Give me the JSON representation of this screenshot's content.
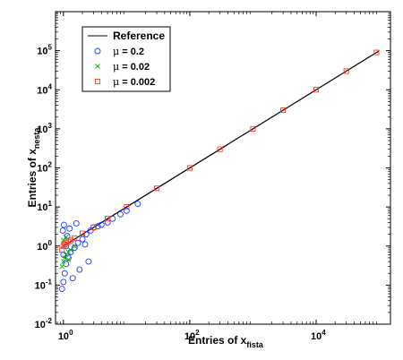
{
  "chart_data": {
    "type": "scatter",
    "xlabel": "Entries of x",
    "xlabel_sub": "fista",
    "ylabel": "Entries of x",
    "ylabel_sub": "nesta",
    "x_scale": "log",
    "y_scale": "log",
    "xlim": [
      0.75,
      150000
    ],
    "ylim": [
      0.01,
      1000000
    ],
    "x_ticks": [
      {
        "value": 1,
        "base": "10",
        "exp": "0"
      },
      {
        "value": 100,
        "base": "10",
        "exp": "2"
      },
      {
        "value": 10000,
        "base": "10",
        "exp": "4"
      }
    ],
    "y_ticks": [
      {
        "value": 0.01,
        "base": "10",
        "exp": "-2"
      },
      {
        "value": 0.1,
        "base": "10",
        "exp": "-1"
      },
      {
        "value": 1,
        "base": "10",
        "exp": "0"
      },
      {
        "value": 10,
        "base": "10",
        "exp": "1"
      },
      {
        "value": 100,
        "base": "10",
        "exp": "2"
      },
      {
        "value": 1000,
        "base": "10",
        "exp": "3"
      },
      {
        "value": 10000,
        "base": "10",
        "exp": "4"
      },
      {
        "value": 100000,
        "base": "10",
        "exp": "5"
      }
    ],
    "legend": {
      "placement": "top-left",
      "entries": [
        {
          "label": "Reference",
          "marker": "line",
          "color": "#000000"
        },
        {
          "label_prefix": "μ",
          "label": " = 0.2",
          "marker": "circle",
          "color": "#1f3cff"
        },
        {
          "label_prefix": "μ",
          "label": " = 0.02",
          "marker": "x",
          "color": "#00b000"
        },
        {
          "label_prefix": "μ",
          "label": " = 0.002",
          "marker": "square",
          "color": "#ff3a1a"
        }
      ]
    },
    "series": [
      {
        "name": "Reference",
        "style": "line",
        "color": "#000000",
        "x": [
          1,
          100000
        ],
        "y": [
          1,
          100000
        ]
      },
      {
        "name": "μ = 0.2",
        "style": "circle",
        "color": "#1f3cff",
        "x": [
          0.95,
          1.0,
          1.05,
          1.1,
          1.2,
          1.3,
          1.5,
          1.7,
          2.0,
          2.3,
          2.7,
          3.0,
          3.5,
          4.0,
          5.0,
          6.0,
          8.0,
          10.0,
          15.0,
          0.98,
          1.02,
          1.15,
          1.4,
          1.8,
          2.5,
          1.0,
          1.1,
          1.25,
          1.6,
          2.2
        ],
        "y": [
          0.08,
          0.12,
          0.2,
          0.35,
          0.5,
          0.7,
          0.9,
          1.2,
          1.5,
          2.0,
          2.5,
          3.0,
          3.2,
          3.5,
          4.0,
          5.0,
          6.5,
          8.0,
          12.0,
          2.5,
          3.5,
          1.8,
          0.15,
          0.25,
          0.4,
          0.6,
          1.0,
          2.8,
          3.8,
          1.1
        ]
      },
      {
        "name": "μ = 0.02",
        "style": "x",
        "color": "#00b000",
        "x": [
          0.95,
          1.0,
          1.05,
          1.1,
          1.2,
          1.3,
          1.5,
          1.0,
          1.1,
          1.2
        ],
        "y": [
          0.3,
          0.4,
          0.5,
          0.6,
          0.7,
          0.8,
          1.0,
          1.4,
          1.7,
          0.45
        ]
      },
      {
        "name": "μ = 0.002",
        "style": "square",
        "color": "#ff3a1a",
        "x": [
          0.95,
          1.0,
          1.05,
          1.1,
          1.2,
          1.3,
          1.5,
          2.0,
          3.0,
          5.0,
          10.0,
          30.0,
          100.0,
          300.0,
          1000.0,
          3000.0,
          10000.0,
          30000.0,
          90000.0
        ],
        "y": [
          0.8,
          1.0,
          1.1,
          1.2,
          1.3,
          1.4,
          1.6,
          2.1,
          3.0,
          5.0,
          10.0,
          30.0,
          100.0,
          300.0,
          1000.0,
          3000.0,
          10000.0,
          30000.0,
          90000.0
        ]
      }
    ]
  }
}
